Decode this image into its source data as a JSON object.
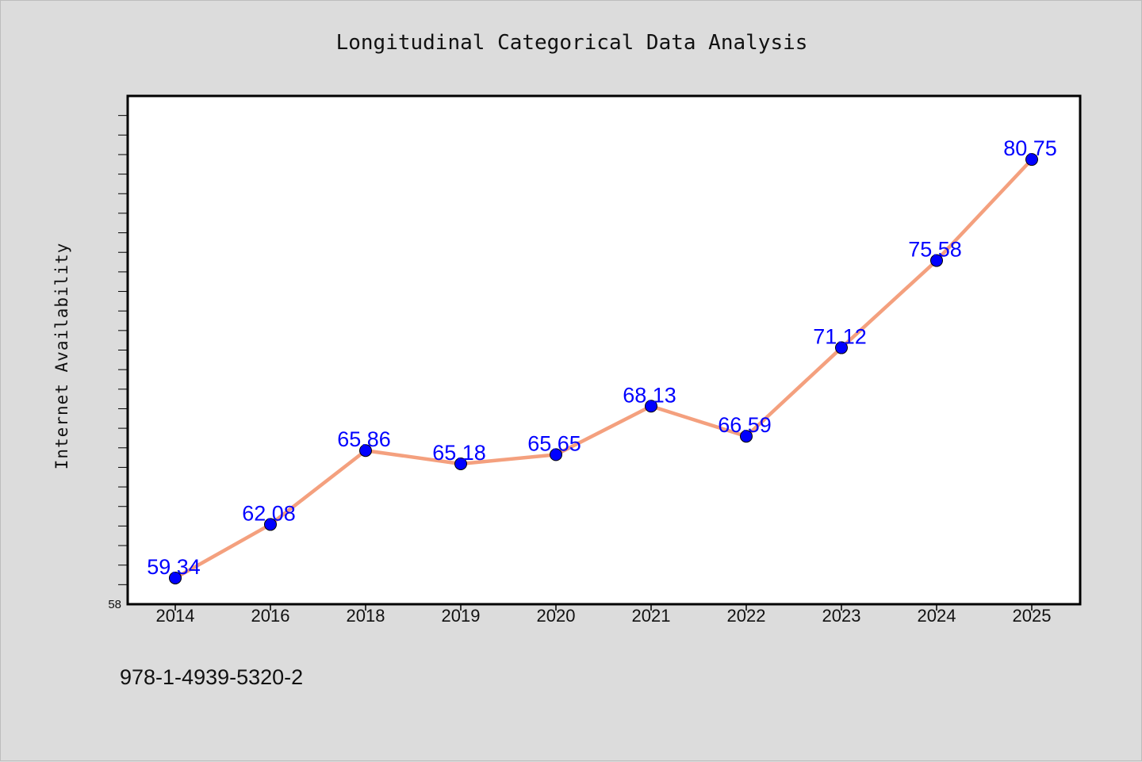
{
  "chart_data": {
    "type": "line",
    "title": "Longitudinal Categorical Data Analysis",
    "ylabel": "Internet Availability",
    "xlabel": "",
    "categories": [
      "2014",
      "2016",
      "2018",
      "2019",
      "2020",
      "2021",
      "2022",
      "2023",
      "2024",
      "2025"
    ],
    "series": [
      {
        "values": [
          59.34,
          62.08,
          65.86,
          65.18,
          65.65,
          68.13,
          66.59,
          71.12,
          75.58,
          80.75
        ],
        "labels": [
          "59.34",
          "62.08",
          "65.86",
          "65.18",
          "65.65",
          "68.13",
          "66.59",
          "71.12",
          "75.58",
          "80.75"
        ],
        "line_color": "#f4a07e",
        "marker_color": "#0000ff"
      }
    ],
    "ylim": [
      58,
      84
    ],
    "ytick_labels": [
      "58"
    ],
    "grid": false,
    "legend": "none"
  },
  "annotation": "978-1-4939-5320-2",
  "colors": {
    "background": "#dcdcdc",
    "plot_background": "#ffffff",
    "line": "#f4a07e",
    "marker": "#0000ff",
    "data_label": "#0000ff"
  }
}
